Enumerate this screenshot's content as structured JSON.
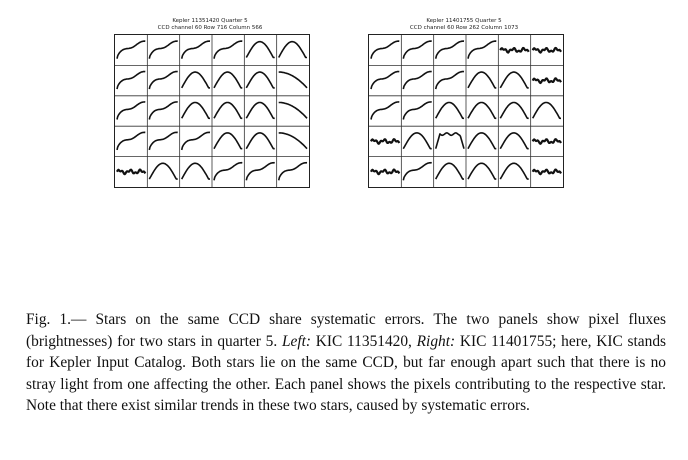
{
  "figure": {
    "left_panel": {
      "title_line1": "Kepler 11351420 Quarter 5",
      "title_line2": "CCD channel 60 Row 716 Column 566",
      "rows": 5,
      "cols": 6,
      "cell_shapes": [
        [
          "rise",
          "rise",
          "rise",
          "rise",
          "hump",
          "hump"
        ],
        [
          "rise",
          "rise",
          "hump",
          "hump",
          "hump",
          "fall"
        ],
        [
          "rise",
          "rise",
          "hump",
          "hump",
          "hump",
          "fall"
        ],
        [
          "rise",
          "rise",
          "rise",
          "hump",
          "hump",
          "fall"
        ],
        [
          "flat",
          "hump",
          "hump",
          "rise",
          "rise",
          "rise"
        ]
      ]
    },
    "right_panel": {
      "title_line1": "Kepler 11401755 Quarter 5",
      "title_line2": "CCD channel 60 Row 262 Column 1073",
      "rows": 5,
      "cols": 6,
      "cell_shapes": [
        [
          "rise",
          "rise",
          "rise",
          "rise",
          "flat",
          "flat"
        ],
        [
          "rise",
          "rise",
          "rise",
          "hump",
          "hump",
          "flat"
        ],
        [
          "rise",
          "rise",
          "hump",
          "hump",
          "hump",
          "hump"
        ],
        [
          "flat",
          "hump",
          "plateau",
          "hump",
          "hump",
          "flat"
        ],
        [
          "flat",
          "rise",
          "hump",
          "hump",
          "hump",
          "flat"
        ]
      ]
    }
  },
  "caption": {
    "prefix": "Fig. 1.— Stars on the same CCD share systematic errors. The two panels show pixel fluxes (brightnesses) for two stars in quarter 5. ",
    "left_label": "Left:",
    "left_text": " KIC 11351420, ",
    "right_label": "Right:",
    "right_text": " KIC 11401755; here, KIC stands for Kepler Input Catalog. Both stars lie on the same CCD, but far enough apart such that there is no stray light from one affecting the other. Each panel shows the pixels contributing to the respective star. Note that there exist similar trends in these two stars, caused by systematic errors."
  }
}
